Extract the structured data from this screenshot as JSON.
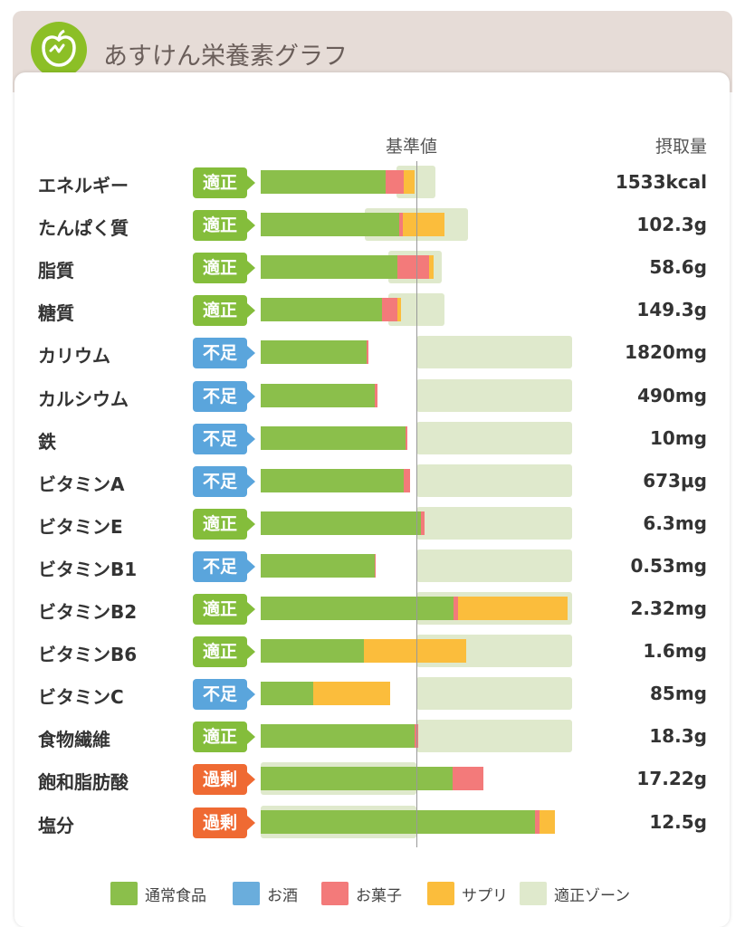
{
  "header": {
    "title": "あすけん栄養素グラフ"
  },
  "columns": {
    "reference": "基準値",
    "intake": "摂取量"
  },
  "colors": {
    "food": "#8bbf4b",
    "alcohol": "#6aaddc",
    "snack": "#f37a7a",
    "supplement": "#fbbd3c",
    "zone": "#dfe9cc",
    "badge_ok": "#84bd3b",
    "badge_low": "#5aa5dc",
    "badge_over": "#ef6a33"
  },
  "legend": [
    {
      "label": "通常食品",
      "key": "food"
    },
    {
      "label": "お酒",
      "key": "alcohol"
    },
    {
      "label": "お菓子",
      "key": "snack"
    },
    {
      "label": "サプリ",
      "key": "supplement"
    },
    {
      "label": "適正ゾーン",
      "key": "zone"
    }
  ],
  "chart_data": {
    "type": "bar",
    "orientation": "horizontal",
    "stacked": true,
    "unit_note": "bar lengths as percent of reference value (基準値 = 100)",
    "reference": 100,
    "series": [
      {
        "name": "通常食品",
        "key": "food"
      },
      {
        "name": "お酒",
        "key": "alcohol"
      },
      {
        "name": "お菓子",
        "key": "snack"
      },
      {
        "name": "サプリ",
        "key": "supplement"
      }
    ],
    "rows": [
      {
        "name": "エネルギー",
        "status": "適正",
        "status_type": "ok",
        "value": "1533kcal",
        "food": 80,
        "alcohol": 0,
        "snack": 12,
        "supplement": 7,
        "zone": [
          87,
          112
        ]
      },
      {
        "name": "たんぱく質",
        "status": "適正",
        "status_type": "ok",
        "value": "102.3g",
        "food": 89,
        "alcohol": 0,
        "snack": 2,
        "supplement": 27,
        "zone": [
          67,
          133
        ]
      },
      {
        "name": "脂質",
        "status": "適正",
        "status_type": "ok",
        "value": "58.6g",
        "food": 88,
        "alcohol": 0,
        "snack": 20,
        "supplement": 3,
        "zone": [
          82,
          116
        ]
      },
      {
        "name": "糖質",
        "status": "適正",
        "status_type": "ok",
        "value": "149.3g",
        "food": 78,
        "alcohol": 0,
        "snack": 10,
        "supplement": 2,
        "zone": [
          82,
          118
        ]
      },
      {
        "name": "カリウム",
        "status": "不足",
        "status_type": "low",
        "value": "1820mg",
        "food": 68,
        "alcohol": 0,
        "snack": 1,
        "supplement": 0,
        "zone": [
          100,
          200
        ]
      },
      {
        "name": "カルシウム",
        "status": "不足",
        "status_type": "low",
        "value": "490mg",
        "food": 73,
        "alcohol": 0,
        "snack": 2,
        "supplement": 0,
        "zone": [
          100,
          200
        ]
      },
      {
        "name": "鉄",
        "status": "不足",
        "status_type": "low",
        "value": "10mg",
        "food": 93,
        "alcohol": 0,
        "snack": 1,
        "supplement": 0,
        "zone": [
          100,
          200
        ]
      },
      {
        "name": "ビタミンA",
        "status": "不足",
        "status_type": "low",
        "value": "673μg",
        "food": 92,
        "alcohol": 0,
        "snack": 4,
        "supplement": 0,
        "zone": [
          100,
          200
        ]
      },
      {
        "name": "ビタミンE",
        "status": "適正",
        "status_type": "ok",
        "value": "6.3mg",
        "food": 103,
        "alcohol": 0,
        "snack": 2,
        "supplement": 0,
        "zone": [
          100,
          200
        ]
      },
      {
        "name": "ビタミンB1",
        "status": "不足",
        "status_type": "low",
        "value": "0.53mg",
        "food": 73,
        "alcohol": 0,
        "snack": 1,
        "supplement": 0,
        "zone": [
          100,
          200
        ]
      },
      {
        "name": "ビタミンB2",
        "status": "適正",
        "status_type": "ok",
        "value": "2.32mg",
        "food": 124,
        "alcohol": 0,
        "snack": 3,
        "supplement": 70,
        "zone": [
          100,
          200
        ]
      },
      {
        "name": "ビタミンB6",
        "status": "適正",
        "status_type": "ok",
        "value": "1.6mg",
        "food": 66,
        "alcohol": 0,
        "snack": 0,
        "supplement": 66,
        "zone": [
          100,
          200
        ]
      },
      {
        "name": "ビタミンC",
        "status": "不足",
        "status_type": "low",
        "value": "85mg",
        "food": 34,
        "alcohol": 0,
        "snack": 0,
        "supplement": 49,
        "zone": [
          100,
          200
        ]
      },
      {
        "name": "食物繊維",
        "status": "適正",
        "status_type": "ok",
        "value": "18.3g",
        "food": 99,
        "alcohol": 0,
        "snack": 2,
        "supplement": 0,
        "zone": [
          100,
          200
        ]
      },
      {
        "name": "飽和脂肪酸",
        "status": "過剰",
        "status_type": "over",
        "value": "17.22g",
        "food": 123,
        "alcohol": 0,
        "snack": 20,
        "supplement": 0,
        "zone": [
          0,
          100
        ]
      },
      {
        "name": "塩分",
        "status": "過剰",
        "status_type": "over",
        "value": "12.5g",
        "food": 176,
        "alcohol": 0,
        "snack": 3,
        "supplement": 10,
        "zone": [
          0,
          100
        ]
      }
    ]
  }
}
